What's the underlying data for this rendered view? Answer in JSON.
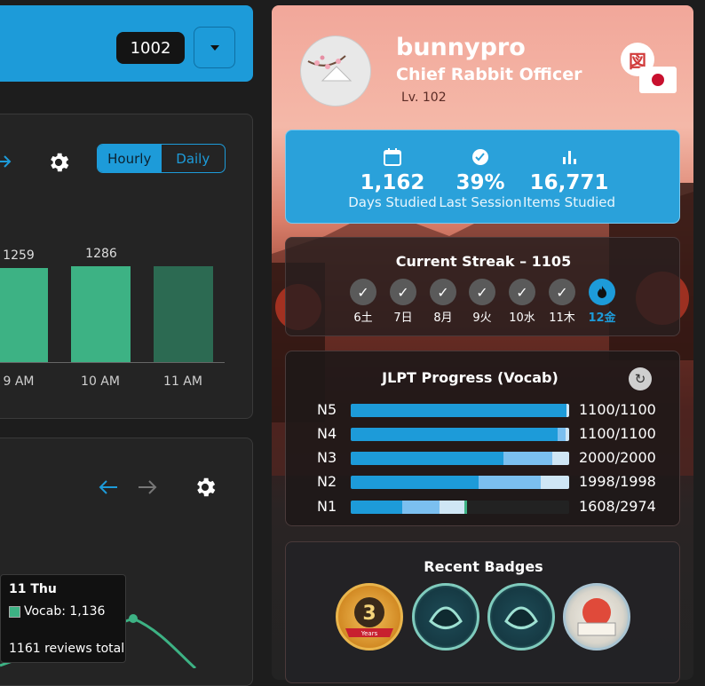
{
  "topbar": {
    "count": "1002"
  },
  "hourly_chart": {
    "toggle": {
      "hourly": "Hourly",
      "daily": "Daily"
    },
    "bar_labels": [
      "1259",
      "1286"
    ],
    "axis_labels": [
      "9 AM",
      "10 AM",
      "11 AM"
    ]
  },
  "tooltip": {
    "date": "11 Thu",
    "series": "Vocab: 1,136",
    "total": "1161 reviews total"
  },
  "profile": {
    "username": "bunnypro",
    "title": "Chief Rabbit Officer",
    "level": "Lv. 102",
    "kanji_badge": "図"
  },
  "stats": [
    {
      "value": "1,162",
      "label": "Days Studied",
      "icon": "calendar-icon"
    },
    {
      "value": "39%",
      "label": "Last Session",
      "icon": "accuracy-icon"
    },
    {
      "value": "16,771",
      "label": "Items Studied",
      "icon": "bar-chart-icon"
    }
  ],
  "streak": {
    "title": "Current Streak – 1105",
    "days": [
      "6土",
      "7日",
      "8月",
      "9火",
      "10水",
      "11木",
      "12金"
    ]
  },
  "jlpt": {
    "title": "JLPT Progress (Vocab)",
    "levels": [
      {
        "name": "N5",
        "value": "1100/1100"
      },
      {
        "name": "N4",
        "value": "1100/1100"
      },
      {
        "name": "N3",
        "value": "2000/2000"
      },
      {
        "name": "N2",
        "value": "1998/1998"
      },
      {
        "name": "N1",
        "value": "1608/2974"
      }
    ]
  },
  "badges": {
    "title": "Recent Badges",
    "anniversary_number": "3",
    "anniversary_text": "Years"
  },
  "colors": {
    "accent": "#1d9bd9",
    "bar": "#3db284",
    "bar_dark": "#2c6a52"
  }
}
